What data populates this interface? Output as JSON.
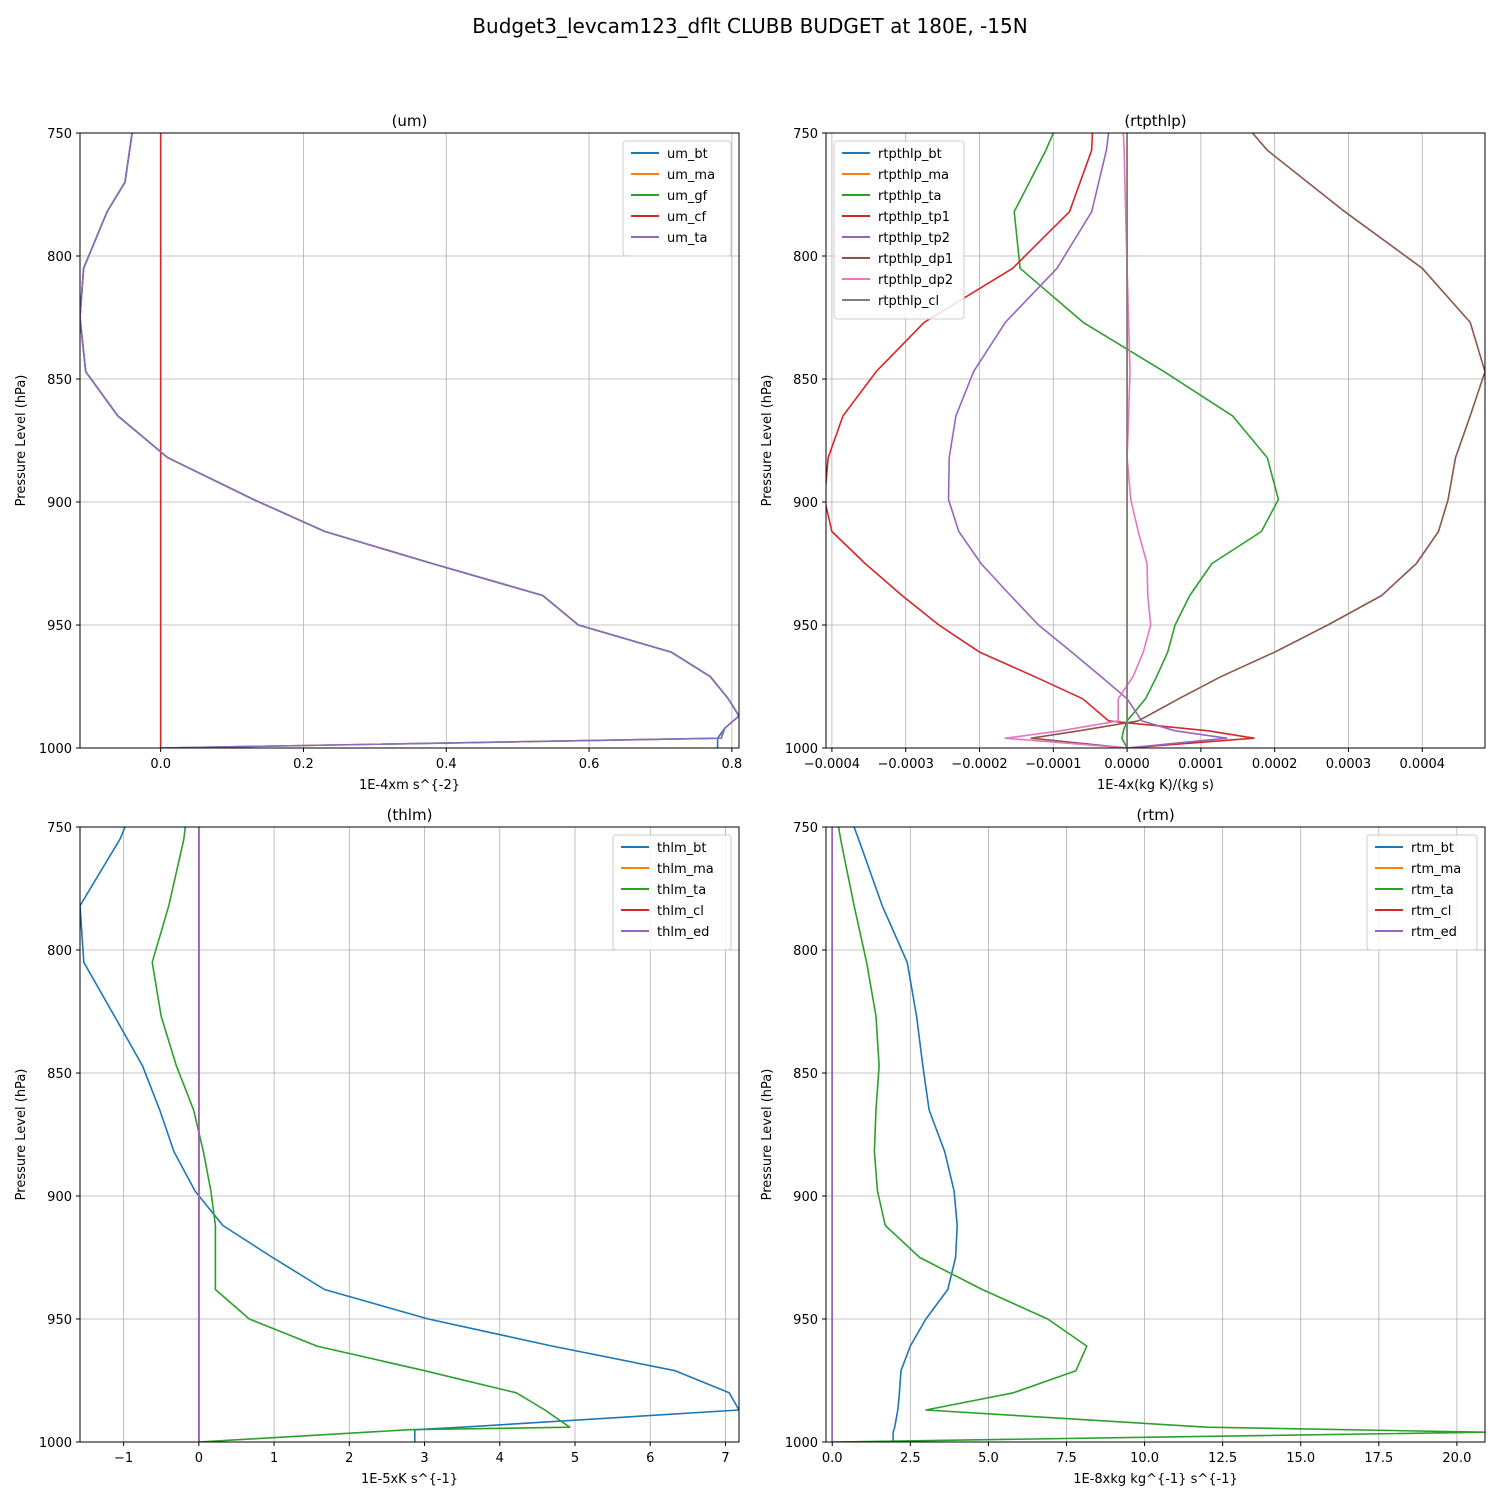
{
  "figure": {
    "suptitle": "Budget3_levcam123_dflt CLUBB BUDGET at 180E, -15N"
  },
  "chart_data": [
    {
      "type": "line",
      "title": "(um)",
      "xlabel": "1E-4xm s^{-2}",
      "ylabel": "Pressure Level (hPa)",
      "xlim": [
        -0.113,
        0.81
      ],
      "ylim": [
        1000,
        750
      ],
      "xticks": [
        0.0,
        0.2,
        0.4,
        0.6,
        0.8
      ],
      "xtick_labels": [
        "0.0",
        "0.2",
        "0.4",
        "0.6",
        "0.8"
      ],
      "yticks": [
        750,
        800,
        850,
        900,
        950,
        1000
      ],
      "ytick_labels": [
        "750",
        "800",
        "850",
        "900",
        "950",
        "1000"
      ],
      "grid": true,
      "legend_position": "top-right",
      "y_levels": [
        750,
        770,
        782,
        805,
        825,
        847,
        865,
        882,
        899,
        912,
        925,
        938,
        950,
        961,
        971,
        980,
        987,
        992,
        996,
        1000
      ],
      "series": [
        {
          "name": "um_bt",
          "color": "#1f77b4",
          "x": [
            -0.04,
            -0.05,
            -0.075,
            -0.108,
            -0.113,
            -0.105,
            -0.06,
            0.01,
            0.13,
            0.23,
            0.38,
            0.535,
            0.585,
            0.715,
            0.77,
            0.795,
            0.81,
            0.79,
            0.78,
            0.78
          ]
        },
        {
          "name": "um_ma",
          "color": "#ff7f0e",
          "x": [
            0.0,
            0.0,
            0.0,
            0.0,
            0.0,
            0.0,
            0.0,
            0.0,
            0.0,
            0.0,
            0.0,
            0.0,
            0.0,
            0.0,
            0.0,
            0.0,
            0.0,
            0.0,
            0.0,
            0.0
          ]
        },
        {
          "name": "um_gf",
          "color": "#2ca02c",
          "x": [
            -0.04,
            -0.05,
            -0.075,
            -0.108,
            -0.113,
            -0.105,
            -0.06,
            0.01,
            0.13,
            0.23,
            0.38,
            0.535,
            0.585,
            0.715,
            0.77,
            0.795,
            0.81,
            0.79,
            0.785,
            0.0
          ]
        },
        {
          "name": "um_cf",
          "color": "#d62728",
          "x": [
            0.0,
            0.0,
            0.0,
            0.0,
            0.0,
            0.0,
            0.0,
            0.0,
            0.0,
            0.0,
            0.0,
            0.0,
            0.0,
            0.0,
            0.0,
            0.0,
            0.0,
            0.0,
            0.0,
            0.0
          ]
        },
        {
          "name": "um_ta",
          "color": "#9467bd",
          "x": [
            -0.04,
            -0.05,
            -0.075,
            -0.108,
            -0.113,
            -0.105,
            -0.06,
            0.01,
            0.13,
            0.23,
            0.38,
            0.535,
            0.585,
            0.715,
            0.77,
            0.795,
            0.81,
            0.79,
            0.785,
            0.0
          ]
        }
      ]
    },
    {
      "type": "line",
      "title": "(rtpthlp)",
      "xlabel": "1E-4x(kg K)/(kg s)",
      "ylabel": "Pressure Level (hPa)",
      "xlim": [
        -0.000408,
        0.000485
      ],
      "ylim": [
        1000,
        750
      ],
      "xticks": [
        -0.0004,
        -0.0003,
        -0.0002,
        -0.0001,
        0.0,
        0.0001,
        0.0002,
        0.0003,
        0.0004
      ],
      "xtick_labels": [
        "−0.0004",
        "−0.0003",
        "−0.0002",
        "−0.0001",
        "0.0000",
        "0.0001",
        "0.0002",
        "0.0003",
        "0.0004"
      ],
      "yticks": [
        750,
        800,
        850,
        900,
        950,
        1000
      ],
      "ytick_labels": [
        "750",
        "800",
        "850",
        "900",
        "950",
        "1000"
      ],
      "grid": true,
      "legend_position": "top-left",
      "y_levels": [
        750,
        757,
        782,
        805,
        827,
        847,
        865,
        882,
        899,
        912,
        925,
        938,
        950,
        961,
        971,
        980,
        989,
        993,
        996,
        1000
      ],
      "series": [
        {
          "name": "rtpthlp_bt",
          "color": "#1f77b4",
          "x": [
            0.0,
            0.0,
            0.0,
            0.0,
            0.0,
            0.0,
            0.0,
            0.0,
            0.0,
            0.0,
            0.0,
            0.0,
            0.0,
            0.0,
            0.0,
            0.0,
            0.0,
            0.0,
            0.0,
            0.0
          ]
        },
        {
          "name": "rtpthlp_ma",
          "color": "#ff7f0e",
          "x": [
            0.0,
            0.0,
            0.0,
            0.0,
            0.0,
            0.0,
            0.0,
            0.0,
            0.0,
            0.0,
            0.0,
            0.0,
            0.0,
            0.0,
            0.0,
            0.0,
            0.0,
            0.0,
            0.0,
            0.0
          ]
        },
        {
          "name": "rtpthlp_ta",
          "color": "#2ca02c",
          "x": [
            -0.0001,
            -0.00011,
            -0.000153,
            -0.000145,
            -5.95e-05,
            5e-05,
            0.000143,
            0.00019,
            0.000205,
            0.000182,
            0.000115,
            8.5e-05,
            6.5e-05,
            5.5e-05,
            4e-05,
            2.5e-05,
            0.0,
            -5e-06,
            -7e-06,
            0.0
          ]
        },
        {
          "name": "rtpthlp_tp1",
          "color": "#d62728",
          "x": [
            -4.7e-05,
            -4.8e-05,
            -7.8e-05,
            -0.000155,
            -0.000275,
            -0.00034,
            -0.000385,
            -0.000405,
            -0.00041,
            -0.0004,
            -0.000355,
            -0.000305,
            -0.000255,
            -0.0002,
            -0.000125,
            -6e-05,
            -2.5e-05,
            0.00011,
            0.000172,
            0.0
          ]
        },
        {
          "name": "rtpthlp_tp2",
          "color": "#9467bd",
          "x": [
            -2.5e-05,
            -2.8e-05,
            -4.8e-05,
            -9.5e-05,
            -0.000165,
            -0.000208,
            -0.000232,
            -0.000241,
            -0.000242,
            -0.000228,
            -0.000198,
            -0.000158,
            -0.00012,
            -7.5e-05,
            -3.5e-05,
            0.0,
            2e-05,
            6.5e-05,
            0.000135,
            0.0
          ]
        },
        {
          "name": "rtpthlp_dp1",
          "color": "#8c564b",
          "x": [
            0.00017,
            0.00019,
            0.000295,
            0.0004,
            0.000465,
            0.000485,
            0.000465,
            0.000445,
            0.000435,
            0.000422,
            0.000392,
            0.000345,
            0.000272,
            0.0002,
            0.000127,
            7e-05,
            1.5e-05,
            -6.5e-05,
            -0.00013,
            0.0
          ]
        },
        {
          "name": "rtpthlp_dp2",
          "color": "#e377c2",
          "x": [
            -5e-06,
            -4e-06,
            -2e-06,
            0.0,
            2e-06,
            4e-06,
            2e-06,
            0.0,
            5e-06,
            1.5e-05,
            2.7e-05,
            2.8e-05,
            3.2e-05,
            2.2e-05,
            8e-06,
            -1.2e-05,
            -1.2e-05,
            -9e-05,
            -0.000165,
            0.0
          ]
        },
        {
          "name": "rtpthlp_cl",
          "color": "#7f7f7f",
          "x": [
            0.0,
            0.0,
            0.0,
            0.0,
            0.0,
            0.0,
            0.0,
            0.0,
            0.0,
            0.0,
            0.0,
            0.0,
            0.0,
            0.0,
            0.0,
            0.0,
            0.0,
            0.0,
            0.0,
            0.0
          ]
        }
      ]
    },
    {
      "type": "line",
      "title": "(thlm)",
      "xlabel": "1E-5xK s^{-1}",
      "ylabel": "Pressure Level (hPa)",
      "xlim": [
        -1.58,
        7.18
      ],
      "ylim": [
        1000,
        750
      ],
      "xticks": [
        -1,
        0,
        1,
        2,
        3,
        4,
        5,
        6,
        7
      ],
      "xtick_labels": [
        "−1",
        "0",
        "1",
        "2",
        "3",
        "4",
        "5",
        "6",
        "7"
      ],
      "yticks": [
        750,
        800,
        850,
        900,
        950,
        1000
      ],
      "ytick_labels": [
        "750",
        "800",
        "850",
        "900",
        "950",
        "1000"
      ],
      "grid": true,
      "legend_position": "top-right",
      "y_levels": [
        750,
        755,
        782,
        805,
        827,
        847,
        865,
        882,
        898,
        912,
        925,
        938,
        950,
        961,
        971,
        980,
        987,
        994,
        995,
        1000
      ],
      "series": [
        {
          "name": "thlm_bt",
          "color": "#1f77b4",
          "x": [
            -0.98,
            -1.05,
            -1.58,
            -1.53,
            -1.12,
            -0.75,
            -0.52,
            -0.33,
            -0.05,
            0.32,
            0.98,
            1.67,
            3.05,
            4.7,
            6.33,
            7.05,
            7.18,
            3.5,
            2.87,
            2.87
          ]
        },
        {
          "name": "thlm_ma",
          "color": "#ff7f0e",
          "x": [
            0.0,
            0.0,
            0.0,
            0.0,
            0.0,
            0.0,
            0.0,
            0.0,
            0.0,
            0.0,
            0.0,
            0.0,
            0.0,
            0.0,
            0.0,
            0.0,
            0.0,
            0.0,
            0.0,
            0.0
          ]
        },
        {
          "name": "thlm_ta",
          "color": "#2ca02c",
          "x": [
            -0.18,
            -0.2,
            -0.4,
            -0.62,
            -0.5,
            -0.3,
            -0.07,
            0.06,
            0.16,
            0.22,
            0.22,
            0.22,
            0.67,
            1.57,
            3.0,
            4.22,
            4.6,
            4.93,
            2.8,
            0.0
          ]
        },
        {
          "name": "thlm_cl",
          "color": "#d62728",
          "x": [
            0.0,
            0.0,
            0.0,
            0.0,
            0.0,
            0.0,
            0.0,
            0.0,
            0.0,
            0.0,
            0.0,
            0.0,
            0.0,
            0.0,
            0.0,
            0.0,
            0.0,
            0.0,
            0.0,
            0.0
          ]
        },
        {
          "name": "thlm_ed",
          "color": "#9467bd",
          "x": [
            0.0,
            0.0,
            0.0,
            0.0,
            0.0,
            0.0,
            0.0,
            0.0,
            0.0,
            0.0,
            0.0,
            0.0,
            0.0,
            0.0,
            0.0,
            0.0,
            0.0,
            0.0,
            0.0,
            0.0
          ]
        }
      ]
    },
    {
      "type": "line",
      "title": "(rtm)",
      "xlabel": "1E-8xkg kg^{-1} s^{-1}",
      "ylabel": "Pressure Level (hPa)",
      "xlim": [
        -0.2,
        20.9
      ],
      "ylim": [
        1000,
        750
      ],
      "xticks": [
        0.0,
        2.5,
        5.0,
        7.5,
        10.0,
        12.5,
        15.0,
        17.5,
        20.0
      ],
      "xtick_labels": [
        "0.0",
        "2.5",
        "5.0",
        "7.5",
        "10.0",
        "12.5",
        "15.0",
        "17.5",
        "20.0"
      ],
      "yticks": [
        750,
        800,
        850,
        900,
        950,
        1000
      ],
      "ytick_labels": [
        "750",
        "800",
        "850",
        "900",
        "950",
        "1000"
      ],
      "grid": true,
      "legend_position": "top-right",
      "y_levels": [
        750,
        757,
        782,
        805,
        827,
        847,
        865,
        882,
        898,
        912,
        925,
        938,
        950,
        961,
        971,
        980,
        987,
        994,
        996,
        1000
      ],
      "series": [
        {
          "name": "rtm_bt",
          "color": "#1f77b4",
          "x": [
            0.7,
            0.9,
            1.6,
            2.4,
            2.7,
            2.9,
            3.1,
            3.6,
            3.9,
            4.0,
            3.95,
            3.7,
            3.0,
            2.5,
            2.2,
            2.15,
            2.1,
            2.0,
            1.95,
            1.95
          ]
        },
        {
          "name": "rtm_ma",
          "color": "#ff7f0e",
          "x": [
            0.0,
            0.0,
            0.0,
            0.0,
            0.0,
            0.0,
            0.0,
            0.0,
            0.0,
            0.0,
            0.0,
            0.0,
            0.0,
            0.0,
            0.0,
            0.0,
            0.0,
            0.0,
            0.0,
            0.0
          ]
        },
        {
          "name": "rtm_ta",
          "color": "#2ca02c",
          "x": [
            0.2,
            0.3,
            0.7,
            1.1,
            1.4,
            1.5,
            1.4,
            1.35,
            1.45,
            1.7,
            2.8,
            4.8,
            6.9,
            8.15,
            7.8,
            5.8,
            3.0,
            12.0,
            20.9,
            0.0
          ]
        },
        {
          "name": "rtm_cl",
          "color": "#d62728",
          "x": [
            0.0,
            0.0,
            0.0,
            0.0,
            0.0,
            0.0,
            0.0,
            0.0,
            0.0,
            0.0,
            0.0,
            0.0,
            0.0,
            0.0,
            0.0,
            0.0,
            0.0,
            0.0,
            0.0,
            0.0
          ]
        },
        {
          "name": "rtm_ed",
          "color": "#9467bd",
          "x": [
            0.0,
            0.0,
            0.0,
            0.0,
            0.0,
            0.0,
            0.0,
            0.0,
            0.0,
            0.0,
            0.0,
            0.0,
            0.0,
            0.0,
            0.0,
            0.0,
            0.0,
            0.0,
            0.0,
            0.0
          ]
        }
      ]
    }
  ]
}
